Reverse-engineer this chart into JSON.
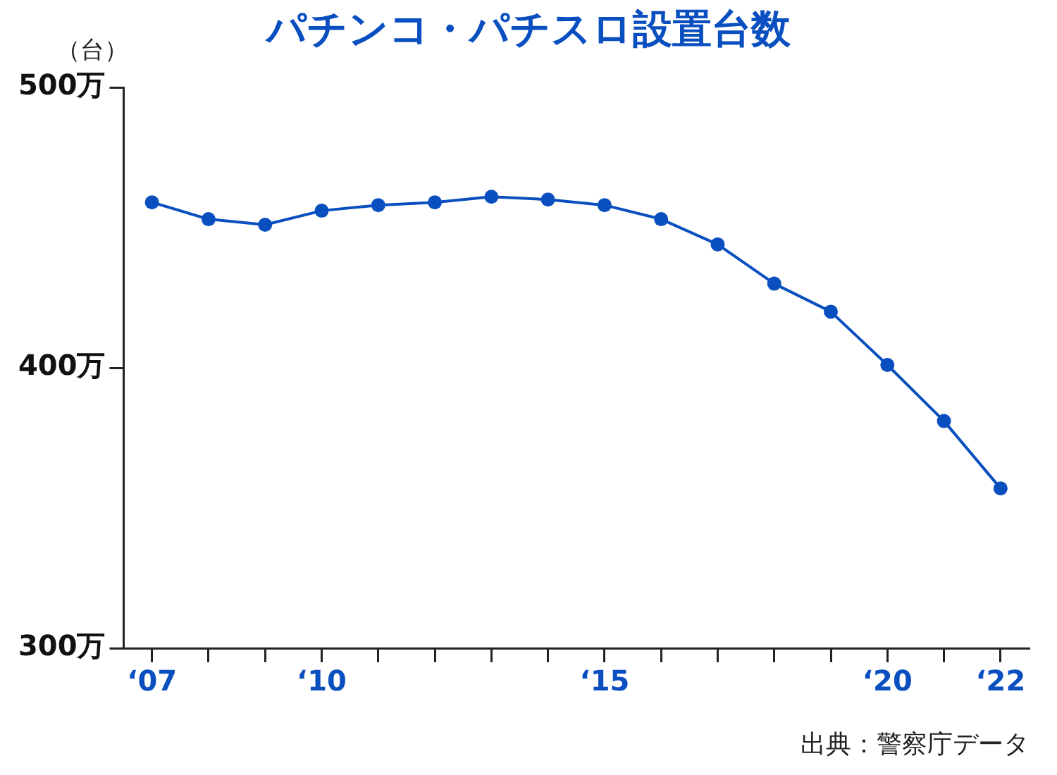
{
  "chart_data": {
    "type": "line",
    "title": "パチンコ・パチスロ設置台数",
    "ylabel": "（台）",
    "categories": [
      "‘07",
      null,
      null,
      "‘10",
      null,
      null,
      null,
      null,
      "‘15",
      null,
      null,
      null,
      null,
      "‘20",
      null,
      "‘22"
    ],
    "series": [
      {
        "color": "#0a4fbf",
        "values": [
          459,
          453,
          451,
          456,
          458,
          459,
          461,
          460,
          458,
          453,
          444,
          430,
          420,
          401,
          381,
          357
        ]
      }
    ],
    "ylim": [
      300,
      500
    ],
    "yticks": [
      {
        "value": 300,
        "label": "300万"
      },
      {
        "value": 400,
        "label": "400万"
      },
      {
        "value": 500,
        "label": "500万"
      }
    ],
    "grid": false,
    "legend": false,
    "marker": "circle",
    "line_style": "solid",
    "annotations": [
      "出典：警察庁データ"
    ]
  }
}
